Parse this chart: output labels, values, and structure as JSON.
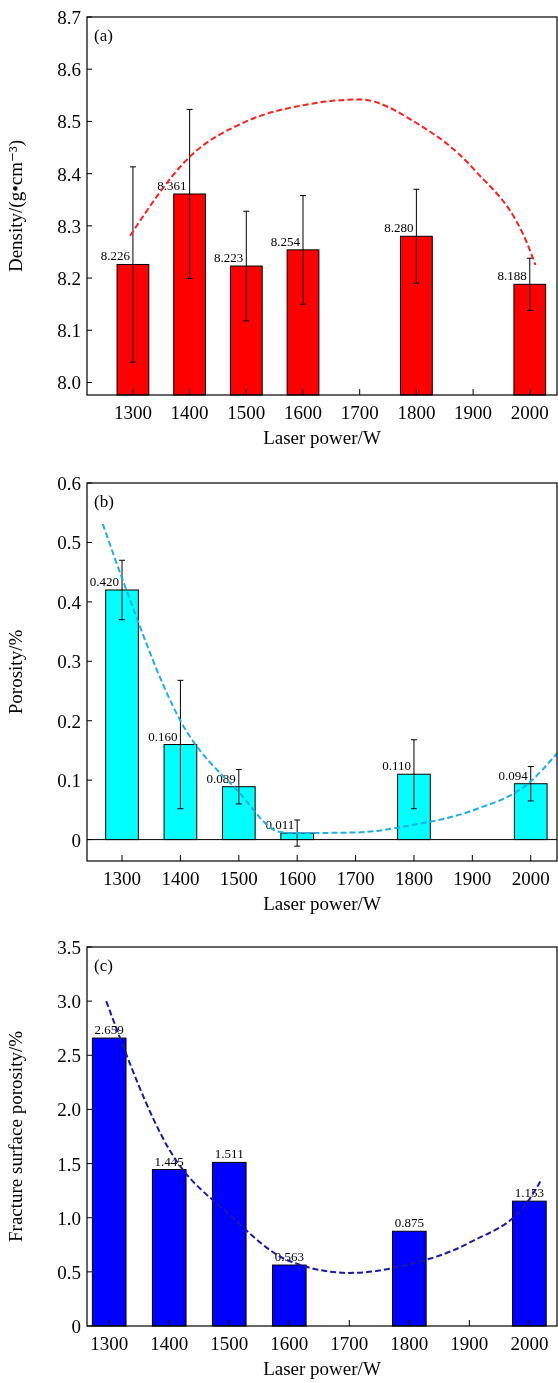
{
  "chart_data": [
    {
      "type": "bar",
      "xlabel": "Laser power/W",
      "ylabel": "Density/(g•cm⁻³)",
      "annotations": [
        "(a)"
      ],
      "xlim": [
        1219,
        2048
      ],
      "xticks": [
        1300,
        1400,
        1500,
        1600,
        1700,
        1800,
        1900,
        2000
      ],
      "ylim": [
        7.976,
        8.7
      ],
      "yticks": [
        {
          "value": 8,
          "label": "8.0"
        },
        8.1,
        8.2,
        8.3,
        8.4,
        8.5,
        8.6,
        8.7
      ],
      "series": [
        {
          "color": "#ff0000",
          "x": [
            1300,
            1400,
            1500,
            1600,
            1800,
            2000
          ],
          "values": [
            8.226,
            8.361,
            8.223,
            8.254,
            8.28,
            8.188
          ],
          "value_labels": [
            "8.226",
            "8.361",
            "8.223",
            "8.254",
            "8.280",
            "8.188"
          ],
          "errors": [
            0.187,
            0.162,
            0.105,
            0.104,
            0.09,
            0.05
          ]
        },
        {
          "type": "line",
          "color": "#ff2020",
          "line_style": "dashed",
          "x": [
            1295,
            1400,
            1500,
            1600,
            1700,
            1800,
            1900,
            2000,
            2010
          ],
          "values": [
            8.281,
            8.432,
            8.5,
            8.531,
            8.542,
            8.497,
            8.41,
            8.254,
            8.225
          ]
        }
      ]
    },
    {
      "type": "bar",
      "xlabel": "Laser power/W",
      "ylabel": "Porosity/%",
      "annotations": [
        "(b)"
      ],
      "xlim": [
        1240,
        2045
      ],
      "xticks": [
        1300,
        1400,
        1500,
        1600,
        1700,
        1800,
        1900,
        2000
      ],
      "ylim": [
        -0.036,
        0.6
      ],
      "yticks": [
        0,
        0.1,
        0.2,
        0.3,
        0.4,
        0.5,
        0.6
      ],
      "ref_lines": [
        {
          "axis": "y",
          "value": 0,
          "color": "#000000"
        }
      ],
      "series": [
        {
          "color": "#00ffff",
          "x": [
            1300,
            1400,
            1500,
            1600,
            1800,
            2000
          ],
          "values": [
            0.42,
            0.16,
            0.089,
            0.011,
            0.11,
            0.094
          ],
          "value_labels": [
            "0.420",
            "0.160",
            "0.089",
            "0.011",
            "0.110",
            "0.094"
          ],
          "errors": [
            0.05,
            0.108,
            0.029,
            0.022,
            0.058,
            0.029
          ]
        },
        {
          "type": "line",
          "color": "#1eaee8",
          "line_style": "dashed",
          "x": [
            1267,
            1300,
            1400,
            1500,
            1570,
            1600,
            1700,
            1800,
            1900,
            2000,
            2045
          ],
          "values": [
            0.531,
            0.44,
            0.2,
            0.08,
            0.013,
            0.011,
            0.012,
            0.025,
            0.049,
            0.098,
            0.145
          ]
        }
      ]
    },
    {
      "type": "bar",
      "xlabel": "Laser power/W",
      "ylabel": "Fracture surface porosity/%",
      "annotations": [
        "(c)"
      ],
      "xlim": [
        1263,
        2046
      ],
      "xticks": [
        1300,
        1400,
        1500,
        1600,
        1700,
        1800,
        1900,
        2000
      ],
      "ylim": [
        0,
        3.5
      ],
      "yticks": [
        0,
        0.5,
        {
          "value": 1,
          "label": "1.0"
        },
        1.5,
        {
          "value": 2,
          "label": "2.0"
        },
        2.5,
        {
          "value": 3,
          "label": "3.0"
        },
        3.5
      ],
      "series": [
        {
          "color": "#0000ff",
          "x": [
            1300,
            1400,
            1500,
            1600,
            1800,
            2000
          ],
          "values": [
            2.659,
            1.445,
            1.511,
            0.563,
            0.875,
            1.153
          ],
          "value_labels": [
            "2.659",
            "1.445",
            "1.511",
            "0.563",
            "0.875",
            "1.153"
          ]
        },
        {
          "type": "line",
          "color": "#1a1aa6",
          "line_style": "dashed",
          "x": [
            1295,
            1400,
            1500,
            1600,
            1700,
            1800,
            1900,
            2000,
            2020
          ],
          "values": [
            3.0,
            1.63,
            1.03,
            0.6,
            0.49,
            0.57,
            0.77,
            1.17,
            1.35
          ]
        }
      ]
    }
  ]
}
